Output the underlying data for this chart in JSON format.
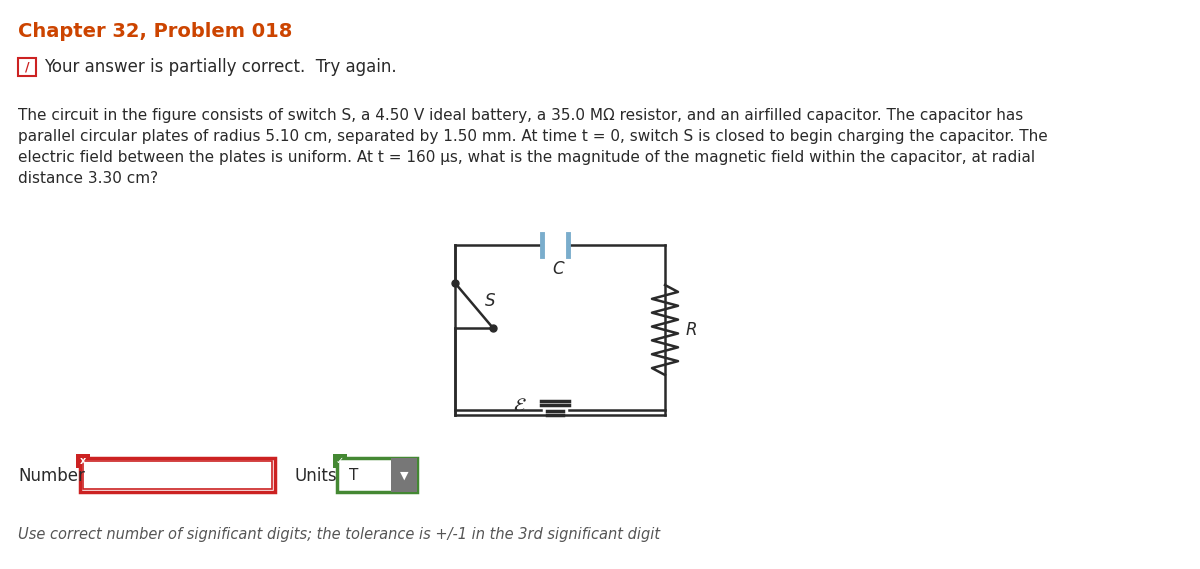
{
  "title": "Chapter 32, Problem 018",
  "title_color": "#cc4400",
  "bg_color": "#ffffff",
  "partial_correct_text": "Your answer is partially correct.  Try again.",
  "problem_text_lines": [
    "The circuit in the figure consists of switch S, a 4.50 V ideal battery, a 35.0 MΩ resistor, and an airfilled capacitor. The capacitor has",
    "parallel circular plates of radius 5.10 cm, separated by 1.50 mm. At time t = 0, switch S is closed to begin charging the capacitor. The",
    "electric field between the plates is uniform. At t = 160 μs, what is the magnitude of the magnetic field within the capacitor, at radial",
    "distance 3.30 cm?"
  ],
  "number_label": "Number",
  "units_label": "Units",
  "units_value": "T",
  "sig_digits_note": "Use correct number of significant digits; the tolerance is +/-1 in the 3rd significant digit",
  "circuit_color": "#2a2a2a",
  "plate_color": "#7aadcc",
  "text_color": "#2a2a2a",
  "red_color": "#cc2222",
  "green_color": "#448833"
}
